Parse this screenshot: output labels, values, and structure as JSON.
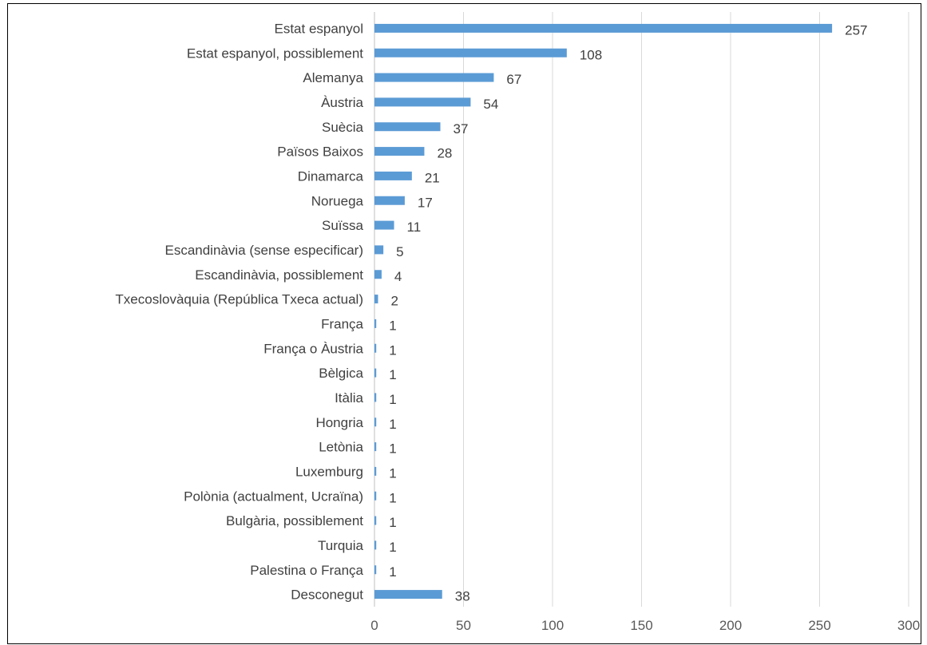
{
  "chart_data": {
    "type": "bar",
    "orientation": "horizontal",
    "title": "",
    "xlabel": "",
    "ylabel": "",
    "categories": [
      "Estat espanyol",
      "Estat espanyol, possiblement",
      "Alemanya",
      "Àustria",
      "Suècia",
      "Països Baixos",
      "Dinamarca",
      "Noruega",
      "Suïssa",
      "Escandinàvia (sense especificar)",
      "Escandinàvia, possiblement",
      "Txecoslovàquia (República Txeca actual)",
      "França",
      "França o Àustria",
      "Bèlgica",
      "Itàlia",
      "Hongria",
      "Letònia",
      "Luxemburg",
      "Polònia (actualment, Ucraïna)",
      "Bulgària, possiblement",
      "Turquia",
      "Palestina o França",
      "Desconegut"
    ],
    "values": [
      257,
      108,
      67,
      54,
      37,
      28,
      21,
      17,
      11,
      5,
      4,
      2,
      1,
      1,
      1,
      1,
      1,
      1,
      1,
      1,
      1,
      1,
      1,
      38
    ],
    "xlim": [
      0,
      300
    ],
    "xticks": [
      "0",
      "50",
      "100",
      "150",
      "200",
      "250",
      "300"
    ],
    "grid": true,
    "data_labels": true,
    "bar_color": "#5b9bd5"
  }
}
